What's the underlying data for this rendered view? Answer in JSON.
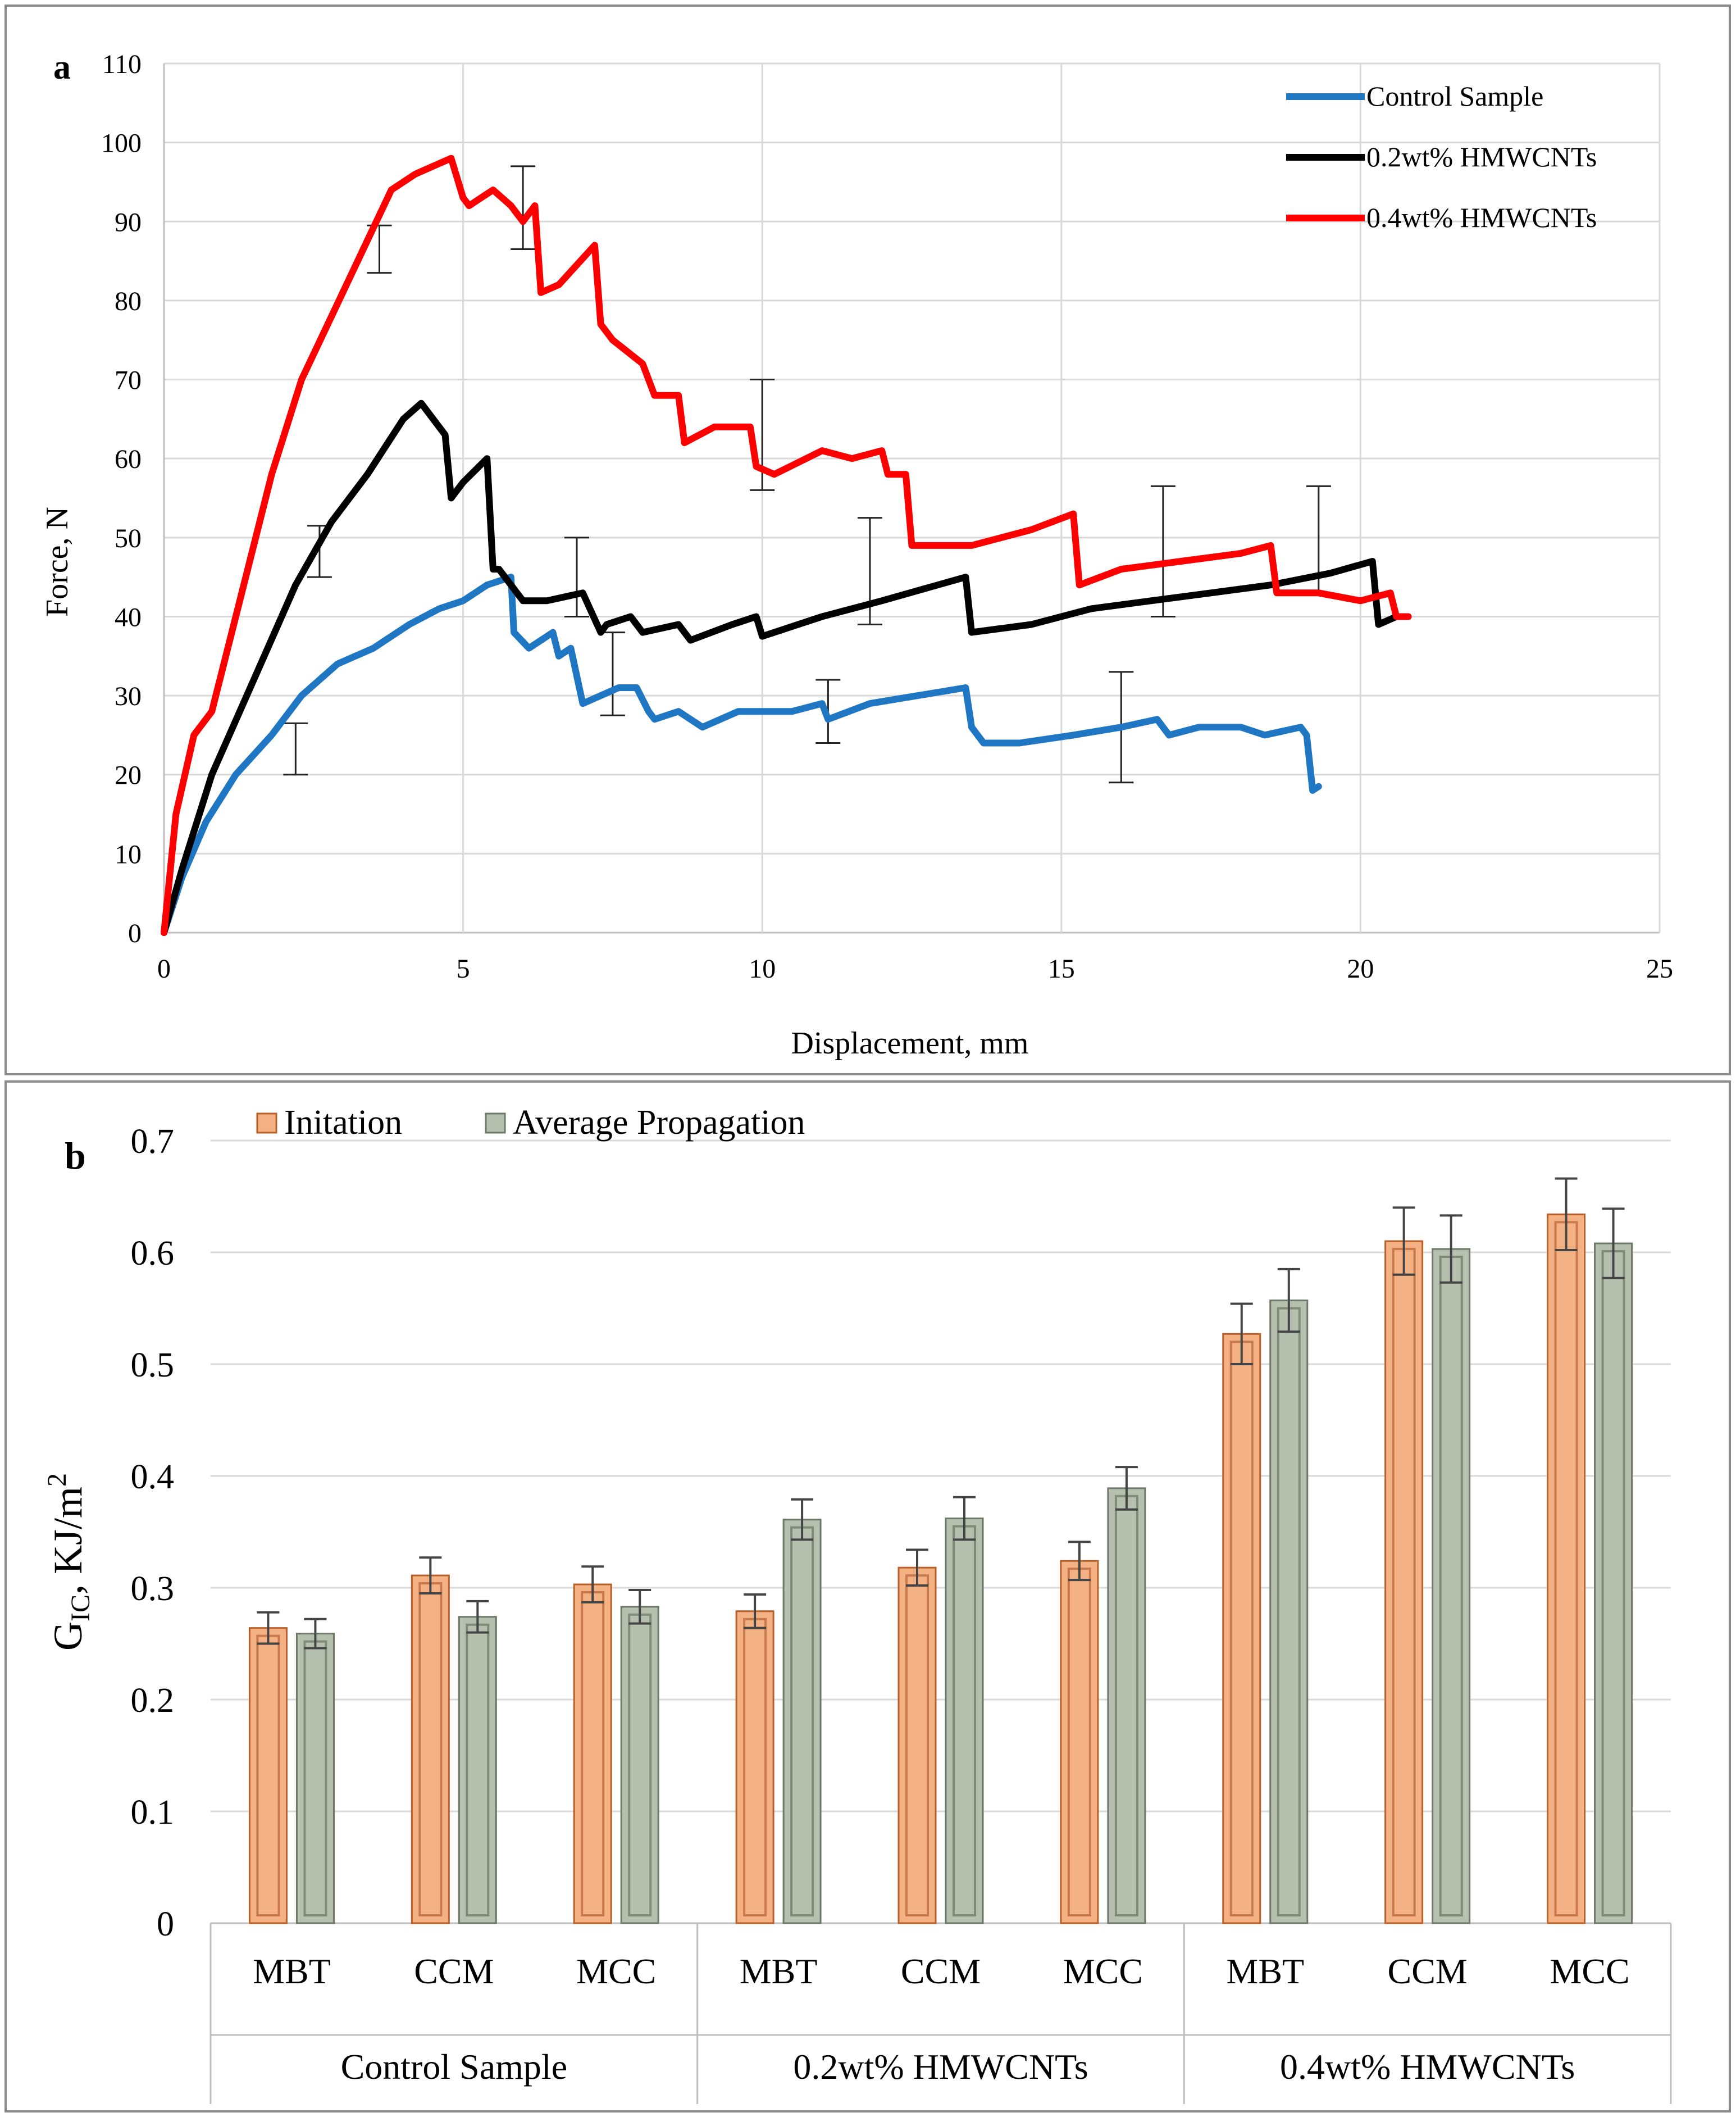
{
  "chart_data": [
    {
      "panel_label": "a",
      "type": "line",
      "xlabel": "Displacement, mm",
      "ylabel": "Force, N",
      "xlim": [
        0,
        25
      ],
      "ylim": [
        0,
        110
      ],
      "xticks": [
        0,
        5,
        10,
        15,
        20,
        25
      ],
      "yticks": [
        0,
        10,
        20,
        30,
        40,
        50,
        60,
        70,
        80,
        90,
        100,
        110
      ],
      "grid": true,
      "legend_position": "top-right",
      "series": [
        {
          "name": "Control Sample",
          "color": "#1f77c4",
          "x": [
            0,
            0.3,
            0.7,
            1.2,
            1.8,
            2.3,
            2.9,
            3.5,
            4.1,
            4.6,
            5.0,
            5.4,
            5.8,
            5.85,
            6.1,
            6.5,
            6.6,
            6.8,
            7.0,
            7.6,
            7.9,
            8.1,
            8.2,
            8.6,
            9.0,
            9.6,
            10.0,
            10.5,
            11.0,
            11.1,
            11.8,
            12.6,
            13.4,
            13.5,
            13.7,
            14.3,
            15.2,
            16.0,
            16.6,
            16.8,
            17.3,
            18.0,
            18.4,
            19.0,
            19.1,
            19.2,
            19.3
          ],
          "y": [
            0,
            7,
            14,
            20,
            25,
            30,
            34,
            36,
            39,
            41,
            42,
            44,
            45,
            38,
            36,
            38,
            35,
            36,
            29,
            31,
            31,
            28,
            27,
            28,
            26,
            28,
            28,
            28,
            29,
            27,
            29,
            30,
            31,
            26,
            24,
            24,
            25,
            26,
            27,
            25,
            26,
            26,
            25,
            26,
            25,
            18,
            18.5
          ]
        },
        {
          "name": "0.2wt% HMWCNTs",
          "color": "#000000",
          "x": [
            0,
            0.3,
            0.8,
            1.5,
            2.2,
            2.8,
            3.4,
            4.0,
            4.3,
            4.5,
            4.7,
            4.8,
            5.0,
            5.4,
            5.5,
            5.6,
            6.0,
            6.4,
            7.0,
            7.3,
            7.4,
            7.8,
            8.0,
            8.6,
            8.8,
            9.5,
            9.9,
            10.0,
            11.0,
            12.0,
            13.4,
            13.5,
            14.5,
            15.5,
            16.5,
            17.5,
            18.5,
            19.5,
            20.2,
            20.3,
            20.6
          ],
          "y": [
            0,
            8,
            20,
            32,
            44,
            52,
            58,
            65,
            67,
            65,
            63,
            55,
            57,
            60,
            46,
            46,
            42,
            42,
            43,
            38,
            39,
            40,
            38,
            39,
            37,
            39,
            40,
            37.5,
            40,
            42,
            45,
            38,
            39,
            41,
            42,
            43,
            44,
            45.5,
            47,
            39,
            40
          ]
        },
        {
          "name": "0.4wt% HMWCNTs",
          "color": "#ff0000",
          "x": [
            0,
            0.2,
            0.5,
            0.8,
            1.2,
            1.8,
            2.3,
            2.8,
            3.3,
            3.8,
            4.2,
            4.5,
            4.8,
            5.0,
            5.1,
            5.5,
            5.8,
            6.0,
            6.2,
            6.3,
            6.6,
            7.2,
            7.3,
            7.5,
            8.0,
            8.2,
            8.6,
            8.7,
            9.2,
            9.8,
            9.9,
            10.2,
            11.0,
            11.5,
            12.0,
            12.1,
            12.4,
            12.5,
            13.5,
            14.5,
            15.2,
            15.3,
            16.0,
            17.0,
            18.0,
            18.5,
            18.6,
            19.3,
            20.0,
            20.5,
            20.6,
            20.8
          ],
          "y": [
            0,
            15,
            25,
            28,
            40,
            58,
            70,
            78,
            86,
            94,
            96,
            97,
            98,
            93,
            92,
            94,
            92,
            90,
            92,
            81,
            82,
            87,
            77,
            75,
            72,
            68,
            68,
            62,
            64,
            64,
            59,
            58,
            61,
            60,
            61,
            58,
            58,
            49,
            49,
            51,
            53,
            44,
            46,
            47,
            48,
            49,
            43,
            43,
            42,
            43,
            40,
            40
          ]
        }
      ],
      "error_bars": [
        {
          "x": 2.2,
          "low": 20,
          "high": 26.5
        },
        {
          "x": 2.6,
          "low": 45,
          "high": 51.5
        },
        {
          "x": 3.6,
          "low": 83.5,
          "high": 89.5
        },
        {
          "x": 6.0,
          "low": 86.5,
          "high": 97
        },
        {
          "x": 6.9,
          "low": 40,
          "high": 50
        },
        {
          "x": 7.5,
          "low": 27.5,
          "high": 38
        },
        {
          "x": 10.0,
          "low": 56,
          "high": 70
        },
        {
          "x": 11.1,
          "low": 24,
          "high": 32
        },
        {
          "x": 11.8,
          "low": 39,
          "high": 52.5
        },
        {
          "x": 16.0,
          "low": 19,
          "high": 33
        },
        {
          "x": 16.7,
          "low": 40,
          "high": 56.5
        },
        {
          "x": 19.3,
          "low": 43,
          "high": 56.5
        }
      ]
    },
    {
      "panel_label": "b",
      "type": "bar",
      "ylabel_main": "G",
      "ylabel_sub": "IC",
      "ylabel_unit": ", KJ/m",
      "ylabel_sup": "2",
      "ylim": [
        0,
        0.7
      ],
      "yticks": [
        "0",
        "0.1",
        "0.2",
        "0.3",
        "0.4",
        "0.5",
        "0.6",
        "0.7"
      ],
      "groups": [
        "Control Sample",
        "0.2wt% HMWCNTs",
        "0.4wt% HMWCNTs"
      ],
      "categories": [
        "MBT",
        "CCM",
        "MCC",
        "MBT",
        "CCM",
        "MCC",
        "MBT",
        "CCM",
        "MCC"
      ],
      "legend_position": "top",
      "series": [
        {
          "name": "Initation",
          "color": "#f4b183",
          "values": [
            0.264,
            0.311,
            0.303,
            0.279,
            0.318,
            0.324,
            0.527,
            0.61,
            0.634
          ],
          "errors": [
            0.014,
            0.016,
            0.016,
            0.015,
            0.016,
            0.017,
            0.027,
            0.03,
            0.032
          ]
        },
        {
          "name": "Average Propagation",
          "color": "#b5c1ae",
          "values": [
            0.259,
            0.274,
            0.283,
            0.361,
            0.362,
            0.389,
            0.557,
            0.603,
            0.608
          ],
          "errors": [
            0.013,
            0.014,
            0.015,
            0.018,
            0.019,
            0.019,
            0.028,
            0.03,
            0.031
          ]
        }
      ]
    }
  ]
}
